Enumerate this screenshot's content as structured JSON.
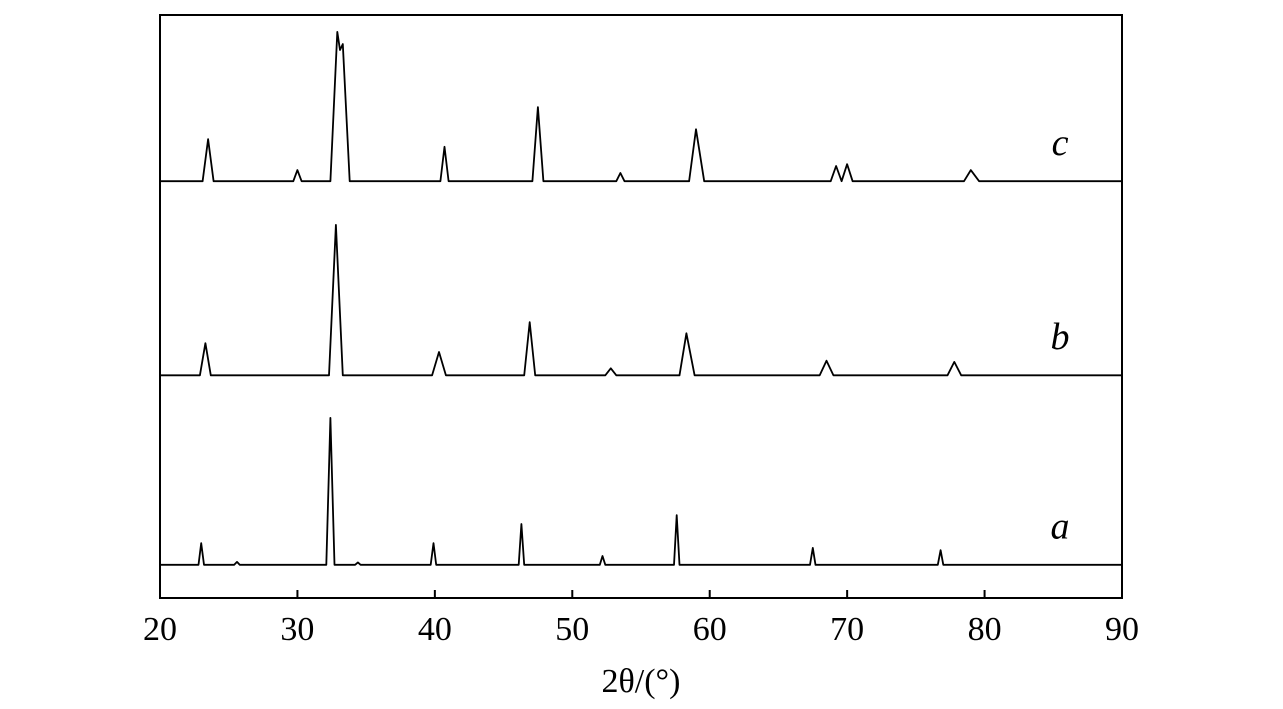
{
  "chart_data": {
    "type": "line",
    "xlabel": "2θ/(°)",
    "xlim": [
      20,
      90
    ],
    "xticks": [
      20,
      30,
      40,
      50,
      60,
      70,
      80,
      90
    ],
    "ylim": [
      0,
      100
    ],
    "series": [
      {
        "name": "a",
        "color": "#000000",
        "x": [
          20,
          22.8,
          23,
          23.2,
          25.4,
          25.6,
          25.8,
          32.1,
          32.4,
          32.7,
          34.2,
          34.4,
          34.6,
          39.7,
          39.9,
          40.1,
          46.1,
          46.3,
          46.5,
          52,
          52.2,
          52.4,
          57.4,
          57.6,
          57.8,
          67.3,
          67.5,
          67.7,
          76.6,
          76.8,
          77,
          90
        ],
        "values": [
          5.7,
          5.7,
          9.4,
          5.7,
          5.7,
          6.2,
          5.7,
          5.7,
          30.9,
          5.7,
          5.7,
          6.1,
          5.7,
          5.7,
          9.4,
          5.7,
          5.7,
          12.7,
          5.7,
          5.7,
          7.2,
          5.7,
          5.7,
          14.2,
          5.7,
          5.7,
          8.6,
          5.7,
          5.7,
          8.2,
          5.7,
          5.7
        ]
      },
      {
        "name": "b",
        "color": "#000000",
        "x": [
          20,
          22.9,
          23.3,
          23.7,
          32.3,
          32.8,
          33.3,
          39.8,
          40.3,
          40.8,
          46.5,
          46.9,
          47.3,
          52.4,
          52.8,
          53.2,
          57.8,
          58.3,
          58.9,
          68,
          68.5,
          69,
          77.3,
          77.8,
          78.3,
          90
        ],
        "values": [
          38.2,
          38.2,
          43.7,
          38.2,
          38.2,
          64.0,
          38.2,
          38.2,
          42.2,
          38.2,
          38.2,
          47.3,
          38.2,
          38.2,
          39.4,
          38.2,
          38.2,
          45.4,
          38.2,
          38.2,
          40.7,
          38.2,
          38.2,
          40.5,
          38.2,
          38.2
        ]
      },
      {
        "name": "c",
        "color": "#000000",
        "x": [
          20,
          23.1,
          23.5,
          23.9,
          29.7,
          30,
          30.3,
          32.4,
          32.9,
          33.1,
          33.3,
          33.8,
          40.4,
          40.7,
          41,
          47.1,
          47.5,
          47.9,
          53.2,
          53.5,
          53.8,
          58.5,
          59,
          59.6,
          68.8,
          69.2,
          69.6,
          70,
          70.4,
          78.5,
          79,
          79.6,
          90
        ],
        "values": [
          71.5,
          71.5,
          78.7,
          71.5,
          71.5,
          73.4,
          71.5,
          71.5,
          97.1,
          94,
          95.0,
          71.5,
          71.5,
          77.4,
          71.5,
          71.5,
          84.2,
          71.5,
          71.5,
          72.9,
          71.5,
          71.5,
          80.4,
          71.5,
          71.5,
          74.1,
          71.5,
          74.4,
          71.5,
          71.5,
          73.4,
          71.5,
          71.5
        ]
      }
    ]
  }
}
